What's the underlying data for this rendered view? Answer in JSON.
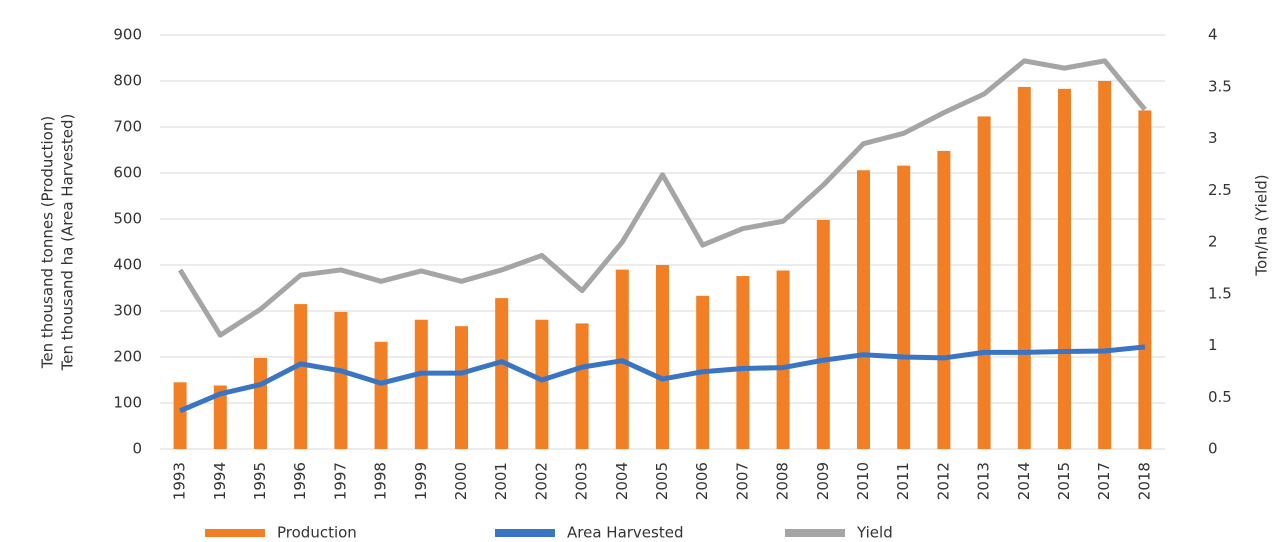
{
  "chart_data": {
    "type": "bar-line",
    "ylabel": [
      "Ten thousand tonnes (Production)",
      "Ten thousand ha (Area Harvested)"
    ],
    "y2label": "Ton/ha (Yield)",
    "categories": [
      "1993",
      "1994",
      "1995",
      "1996",
      "1997",
      "1998",
      "1999",
      "2000",
      "2001",
      "2002",
      "2003",
      "2004",
      "2005",
      "2006",
      "2007",
      "2008",
      "2009",
      "2010",
      "2011",
      "2012",
      "2013",
      "2014",
      "2015",
      "2017",
      "2018"
    ],
    "series": [
      {
        "name": "Production",
        "type": "bar",
        "color": "#f07f26",
        "values": [
          145,
          138,
          198,
          315,
          298,
          233,
          281,
          267,
          328,
          281,
          273,
          390,
          400,
          333,
          376,
          388,
          498,
          606,
          616,
          648,
          723,
          787,
          783,
          800,
          736
        ]
      },
      {
        "name": "Area Harvested",
        "type": "line",
        "color": "#3a75c4",
        "values": [
          83,
          120,
          140,
          185,
          170,
          143,
          165,
          165,
          190,
          150,
          178,
          192,
          152,
          168,
          175,
          177,
          193,
          205,
          200,
          198,
          210,
          210,
          212,
          213,
          222
        ]
      },
      {
        "name": "Yield",
        "type": "line",
        "axis": "y2",
        "color": "#a5a5a5",
        "values": [
          1.73,
          1.1,
          1.35,
          1.68,
          1.73,
          1.62,
          1.72,
          1.62,
          1.73,
          1.87,
          1.53,
          2.0,
          2.65,
          1.97,
          2.13,
          2.2,
          2.55,
          2.95,
          3.05,
          3.25,
          3.43,
          3.75,
          3.68,
          3.75,
          3.28
        ]
      }
    ],
    "ylim": [
      0,
      900
    ],
    "yticks": [
      0,
      100,
      200,
      300,
      400,
      500,
      600,
      700,
      800,
      900
    ],
    "y2lim": [
      0,
      4
    ],
    "y2ticks": [
      0,
      0.5,
      1,
      1.5,
      2,
      2.5,
      3,
      3.5,
      4
    ],
    "grid": true,
    "legend": "bottom"
  }
}
